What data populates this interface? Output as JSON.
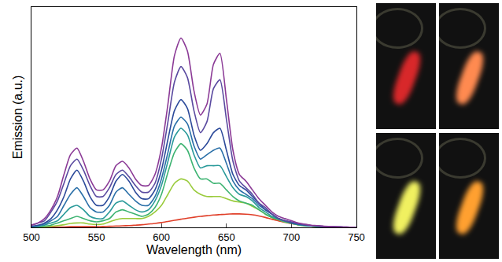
{
  "chart_data": {
    "type": "line",
    "x_label": "Wavelength (nm)",
    "y_label": "Emission (a.u.)",
    "xlim": [
      500,
      750
    ],
    "xticks": [
      500,
      550,
      600,
      650,
      700,
      750
    ],
    "ylim": [
      0,
      100
    ],
    "tick_labels": "x",
    "grid": false,
    "x": [
      500,
      505,
      510,
      515,
      520,
      525,
      530,
      535,
      540,
      545,
      550,
      555,
      560,
      565,
      570,
      575,
      580,
      585,
      590,
      595,
      600,
      605,
      610,
      615,
      620,
      625,
      630,
      635,
      640,
      645,
      650,
      655,
      660,
      665,
      670,
      675,
      680,
      685,
      690,
      695,
      700,
      705,
      710,
      715,
      720,
      725,
      730,
      735,
      740,
      745,
      750
    ],
    "series": [
      {
        "color": "#e0402a",
        "values": [
          0,
          0,
          0.1,
          0.1,
          0.2,
          0.2,
          0.3,
          0.3,
          0.3,
          0.3,
          0.3,
          0.4,
          0.5,
          0.6,
          0.7,
          0.8,
          1,
          1.2,
          1.5,
          1.8,
          2.2,
          2.7,
          3.2,
          3.7,
          4.2,
          4.6,
          5,
          5.3,
          5.6,
          5.8,
          6,
          6.1,
          6.1,
          6,
          5.7,
          5.2,
          4.5,
          3.7,
          3,
          2.3,
          1.7,
          1.2,
          0.9,
          0.6,
          0.4,
          0.3,
          0.2,
          0.1,
          0.1,
          0,
          0
        ]
      },
      {
        "color": "#9acb3c",
        "values": [
          0.1,
          0.2,
          0.3,
          0.5,
          0.8,
          1.2,
          1.8,
          2,
          2,
          1.5,
          1.3,
          1.5,
          2.5,
          3.5,
          4,
          4,
          4,
          4,
          5,
          7,
          10,
          15,
          20,
          22,
          21,
          17,
          15,
          14,
          14,
          14,
          13,
          12,
          11.5,
          11,
          9.5,
          8,
          6,
          4.5,
          3.5,
          2.5,
          1.8,
          1.2,
          0.8,
          0.6,
          0.4,
          0.3,
          0.2,
          0.1,
          0.1,
          0.1,
          0
        ]
      },
      {
        "color": "#3cb371",
        "values": [
          0.2,
          0.3,
          0.6,
          1,
          2,
          3,
          4,
          5,
          4,
          3,
          2.5,
          3,
          4,
          7,
          8,
          7,
          6,
          5,
          6,
          9,
          15,
          25,
          34,
          38,
          35,
          27,
          22,
          22,
          20,
          20,
          17,
          14,
          12,
          11,
          10,
          8,
          6,
          4.5,
          3.5,
          2.5,
          1.8,
          1.2,
          0.8,
          0.6,
          0.4,
          0.3,
          0.2,
          0.1,
          0.1,
          0.1,
          0
        ]
      },
      {
        "color": "#2a9a9a",
        "values": [
          0.3,
          0.5,
          1,
          2,
          3,
          6,
          9,
          10,
          8,
          5,
          4,
          4,
          7,
          11,
          12,
          10,
          8,
          7,
          8,
          12,
          19,
          30,
          41,
          45,
          42,
          33,
          27,
          28,
          28,
          28,
          23,
          18,
          15,
          14,
          12,
          9,
          7,
          5,
          4,
          3,
          2,
          1.3,
          0.9,
          0.6,
          0.5,
          0.3,
          0.2,
          0.2,
          0.1,
          0.1,
          0
        ]
      },
      {
        "color": "#2a6fa8",
        "values": [
          0.4,
          0.8,
          1.5,
          3,
          5,
          10,
          15,
          18,
          14,
          9,
          7,
          7,
          10,
          16,
          18,
          15,
          12,
          10,
          10,
          14,
          22,
          34,
          46,
          50,
          47,
          37,
          31,
          33,
          35,
          36,
          29,
          21,
          17,
          15,
          13,
          10,
          8,
          6,
          4,
          3,
          2,
          1.4,
          1,
          0.7,
          0.5,
          0.4,
          0.3,
          0.2,
          0.1,
          0.1,
          0
        ]
      },
      {
        "color": "#2c4a9a",
        "values": [
          0.5,
          1,
          2,
          4,
          8,
          14,
          22,
          26,
          21,
          14,
          10,
          10,
          14,
          21,
          24,
          21,
          16,
          13,
          13,
          17,
          26,
          40,
          53,
          58,
          54,
          42,
          35,
          38,
          43,
          45,
          35,
          24,
          19,
          17,
          14,
          11,
          8,
          6,
          4,
          3,
          2.2,
          1.5,
          1.1,
          0.8,
          0.6,
          0.4,
          0.3,
          0.2,
          0.1,
          0.1,
          0
        ]
      },
      {
        "color": "#5a4aa0",
        "values": [
          1,
          2,
          3,
          7,
          12,
          20,
          28,
          31,
          26,
          19,
          14,
          14,
          18,
          24,
          26,
          23,
          19,
          16,
          16,
          20,
          31,
          48,
          66,
          73,
          68,
          53,
          43,
          48,
          63,
          67,
          49,
          30,
          21,
          18,
          15,
          11,
          9,
          6,
          4,
          3,
          2.5,
          1.7,
          1.3,
          0.9,
          0.7,
          0.4,
          0.3,
          0.2,
          0.2,
          0.1,
          0
        ]
      },
      {
        "color": "#8b3a96",
        "values": [
          1,
          2,
          4,
          8,
          14,
          24,
          33,
          36,
          30,
          22,
          17,
          17,
          21,
          28,
          30,
          27,
          22,
          19,
          19,
          24,
          36,
          56,
          78,
          86,
          80,
          62,
          51,
          56,
          74,
          79,
          58,
          35,
          24,
          21,
          17,
          13,
          10,
          7,
          5,
          4,
          3,
          2,
          1.5,
          1,
          0.8,
          0.5,
          0.4,
          0.3,
          0.2,
          0.1,
          0
        ]
      }
    ]
  }
}
